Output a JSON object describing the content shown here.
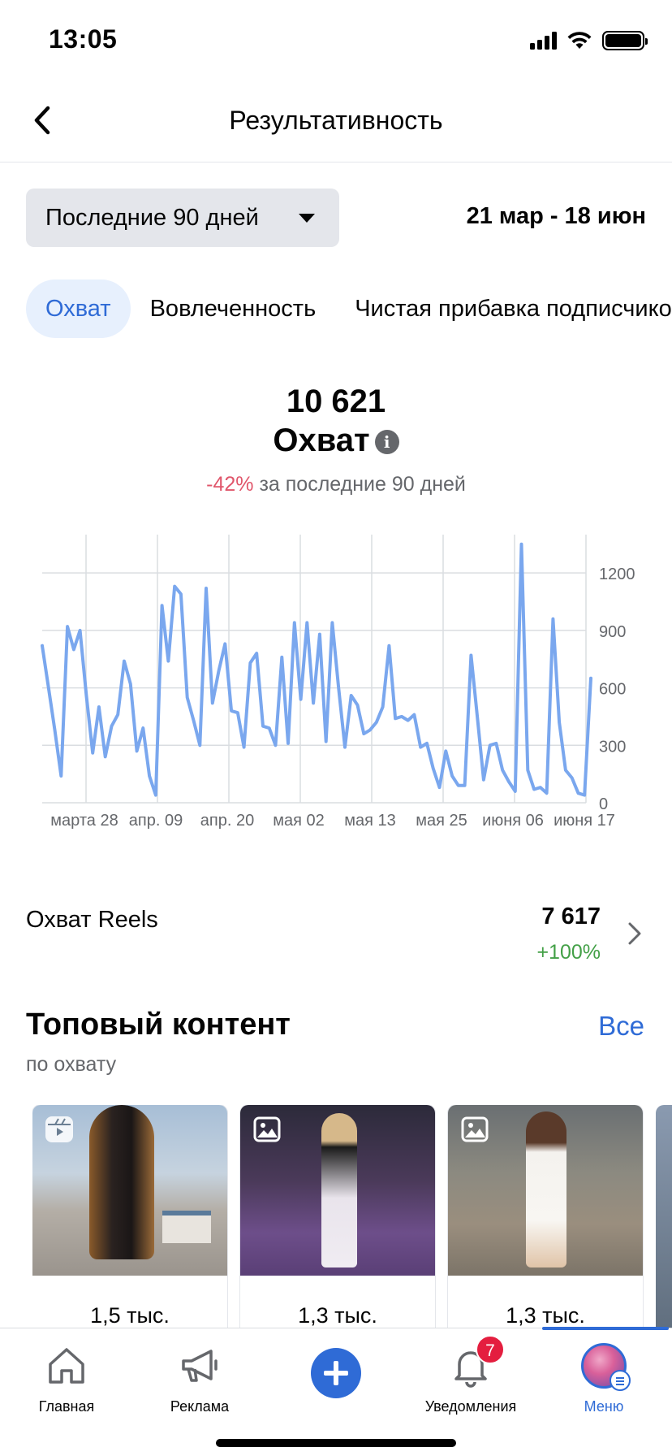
{
  "status_bar": {
    "time": "13:05"
  },
  "header": {
    "title": "Результативность"
  },
  "period": {
    "selected": "Последние 90 дней",
    "range": "21 мар - 18 июн"
  },
  "tabs": [
    {
      "label": "Охват",
      "active": true
    },
    {
      "label": "Вовлеченность",
      "active": false
    },
    {
      "label": "Чистая прибавка подписчиков",
      "active": false
    }
  ],
  "metric": {
    "value": "10 621",
    "label": "Охват",
    "change": "-42%",
    "change_suffix": "за последние 90 дней"
  },
  "chart_data": {
    "type": "line",
    "title": "",
    "xlabel": "",
    "ylabel": "",
    "ylim": [
      0,
      1400
    ],
    "yticks": [
      0,
      300,
      600,
      900,
      1200
    ],
    "xtick_labels": [
      "марта 28",
      "апр. 09",
      "апр. 20",
      "мая 02",
      "мая 13",
      "мая 25",
      "июня 06",
      "июня 17"
    ],
    "grid": true,
    "line_color": "#7aa7ee",
    "series": [
      {
        "values": [
          820,
          600,
          380,
          140,
          920,
          800,
          900,
          560,
          260,
          500,
          240,
          400,
          460,
          740,
          620,
          270,
          390,
          140,
          40,
          1030,
          740,
          1130,
          1090,
          550,
          430,
          300,
          1120,
          520,
          690,
          830,
          480,
          470,
          290,
          730,
          780,
          400,
          390,
          300,
          760,
          310,
          940,
          540,
          940,
          520,
          880,
          320,
          940,
          600,
          290,
          560,
          510,
          360,
          380,
          420,
          500,
          820,
          440,
          450,
          430,
          460,
          290,
          310,
          180,
          80,
          270,
          140,
          90,
          90,
          770,
          450,
          120,
          300,
          310,
          170,
          110,
          60,
          1350,
          170,
          70,
          80,
          50,
          960,
          420,
          170,
          130,
          50,
          40,
          650
        ]
      }
    ]
  },
  "reels": {
    "label": "Охват Reels",
    "value": "7 617",
    "change": "+100%"
  },
  "top_content": {
    "title": "Топовый контент",
    "all_label": "Все",
    "subtitle": "по охвату",
    "items": [
      {
        "type_icon": "reels-icon",
        "value": "1,5 тыс."
      },
      {
        "type_icon": "photo-icon",
        "value": "1,3 тыс."
      },
      {
        "type_icon": "photo-icon",
        "value": "1,3 тыс."
      }
    ]
  },
  "bottom_nav": {
    "items": [
      {
        "label": "Главная",
        "icon": "home-icon"
      },
      {
        "label": "Реклама",
        "icon": "megaphone-icon"
      },
      {
        "label": "",
        "icon": "plus-icon"
      },
      {
        "label": "Уведомления",
        "icon": "bell-icon",
        "badge": "7"
      },
      {
        "label": "Меню",
        "icon": "avatar",
        "active": true
      }
    ]
  }
}
